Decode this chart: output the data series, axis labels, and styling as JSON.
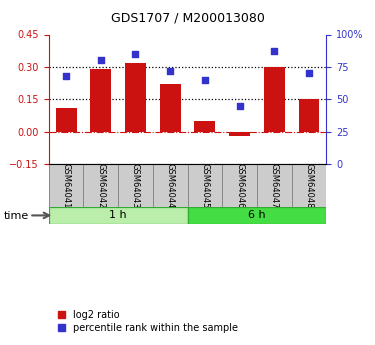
{
  "title": "GDS1707 / M200013080",
  "samples": [
    "GSM64041",
    "GSM64042",
    "GSM64043",
    "GSM64044",
    "GSM64045",
    "GSM64046",
    "GSM64047",
    "GSM64048"
  ],
  "log2_ratio": [
    0.11,
    0.29,
    0.32,
    0.22,
    0.05,
    -0.02,
    0.3,
    0.15
  ],
  "percentile_rank": [
    68,
    80,
    85,
    72,
    65,
    45,
    87,
    70
  ],
  "group1_label": "1 h",
  "group2_label": "6 h",
  "group1_count": 4,
  "group2_count": 4,
  "bar_color": "#cc1111",
  "dot_color": "#3333cc",
  "left_ylim": [
    -0.15,
    0.45
  ],
  "right_ylim": [
    0,
    100
  ],
  "left_yticks": [
    -0.15,
    0.0,
    0.15,
    0.3,
    0.45
  ],
  "right_yticks": [
    0,
    25,
    50,
    75,
    100
  ],
  "hline_dotted": [
    0.15,
    0.3
  ],
  "group1_color": "#bbeeaa",
  "group2_color": "#44dd44",
  "legend_label1": "log2 ratio",
  "legend_label2": "percentile rank within the sample",
  "tick_label_size": 7,
  "title_fontsize": 9
}
